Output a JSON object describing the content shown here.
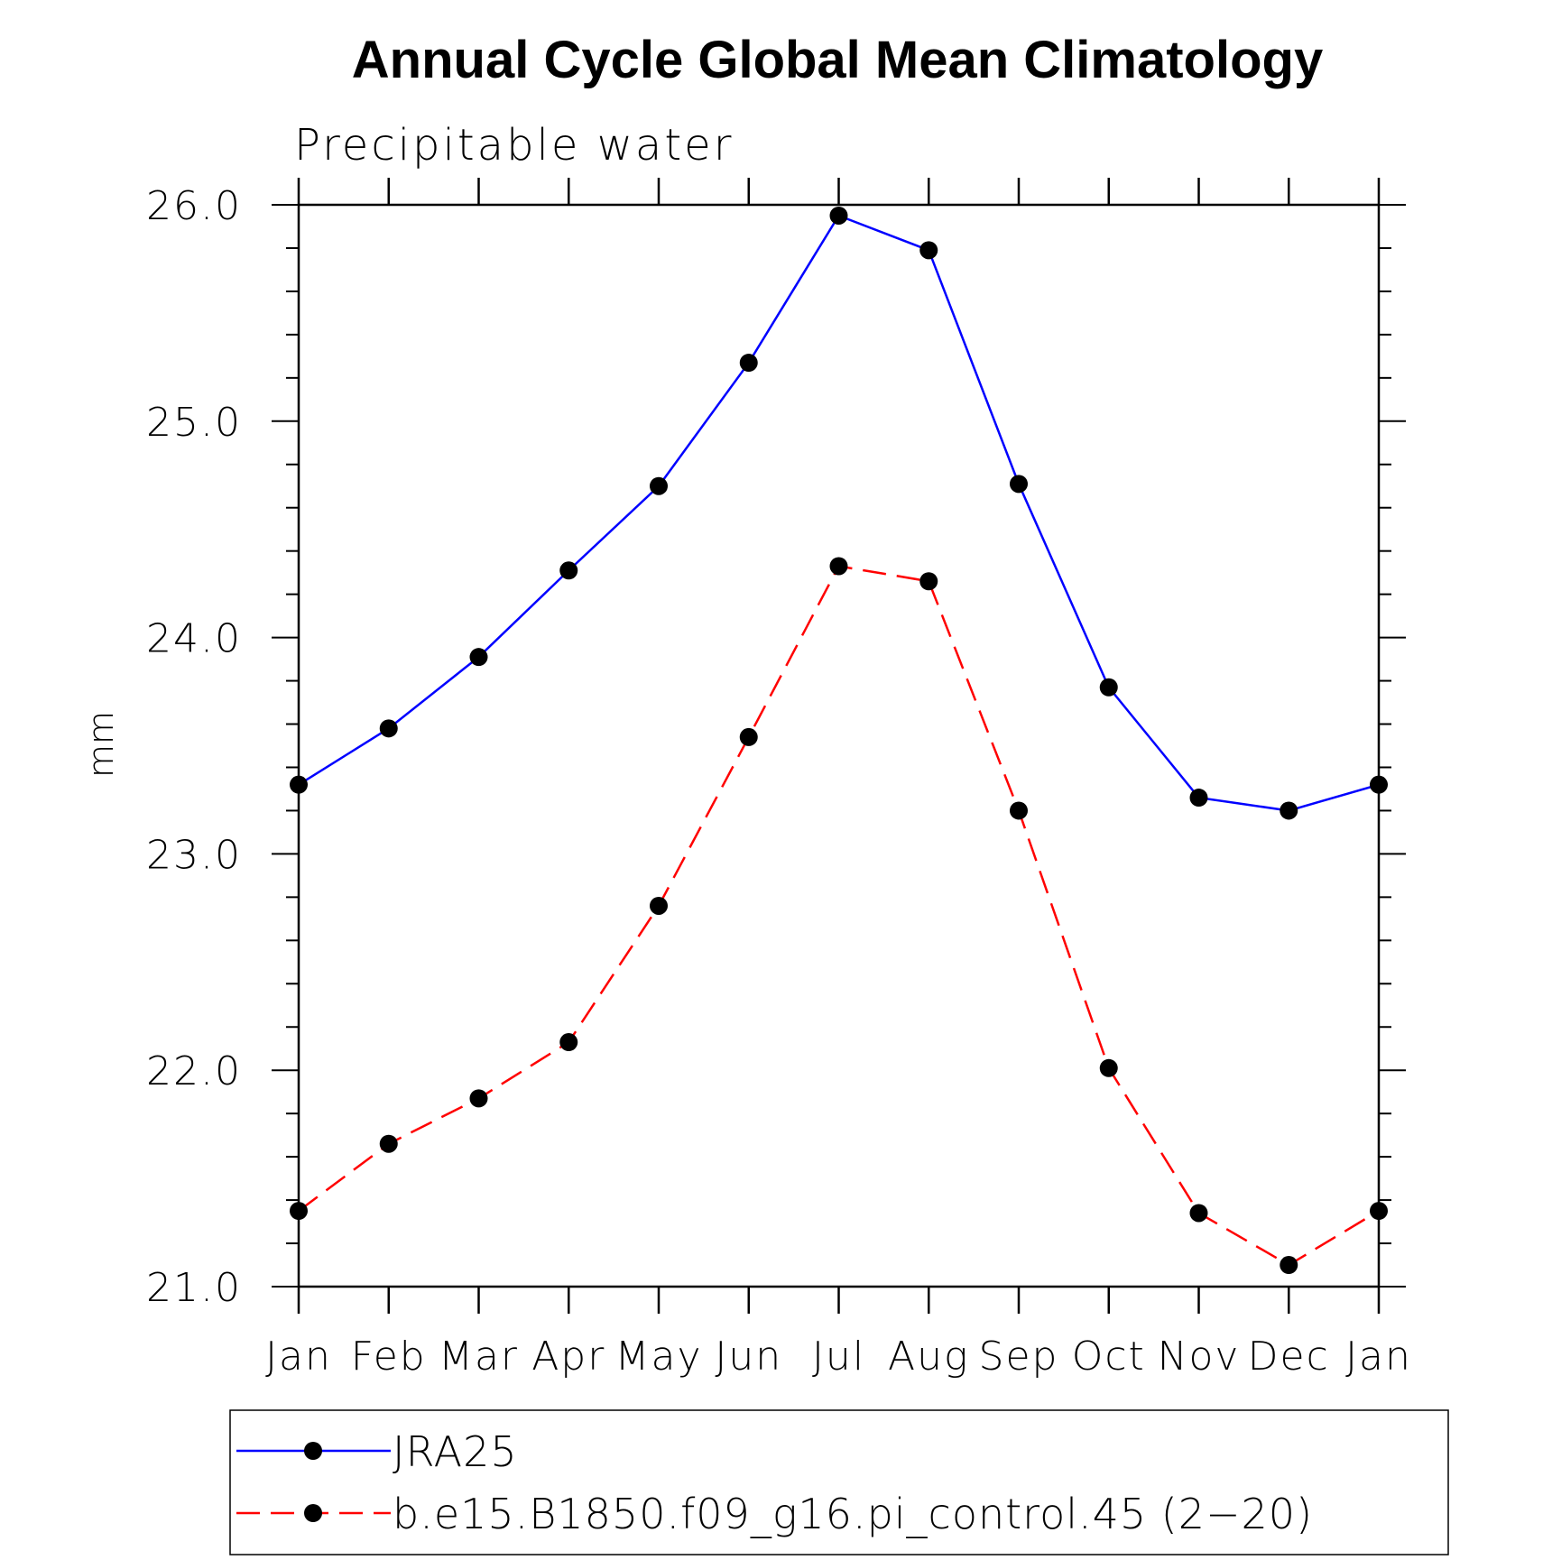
{
  "chart_data": {
    "type": "line",
    "title": "Annual Cycle Global Mean Climatology",
    "subtitle": "Precipitable water",
    "ylabel": "mm",
    "xlabel": "",
    "ylim": [
      21.0,
      26.0
    ],
    "yticks": [
      "21.0",
      "22.0",
      "23.0",
      "24.0",
      "25.0",
      "26.0"
    ],
    "categories": [
      "Jan",
      "Feb",
      "Mar",
      "Apr",
      "May",
      "Jun",
      "Jul",
      "Aug",
      "Sep",
      "Oct",
      "Nov",
      "Dec",
      "Jan"
    ],
    "grid": false,
    "legend_position": "bottom",
    "series": [
      {
        "name": "JRA25",
        "color": "#0000ff",
        "dash": "solid",
        "values": [
          23.32,
          23.58,
          23.91,
          24.31,
          24.7,
          25.27,
          25.95,
          25.79,
          24.71,
          23.77,
          23.26,
          23.2,
          23.32
        ]
      },
      {
        "name": "b.e15.B1850.f09_g16.pi_control.45 (2−20)",
        "color": "#ff0000",
        "dash": "dashed",
        "values": [
          21.35,
          21.66,
          21.87,
          22.13,
          22.76,
          23.54,
          24.33,
          24.26,
          23.2,
          22.01,
          21.34,
          21.1,
          21.35
        ]
      }
    ]
  }
}
